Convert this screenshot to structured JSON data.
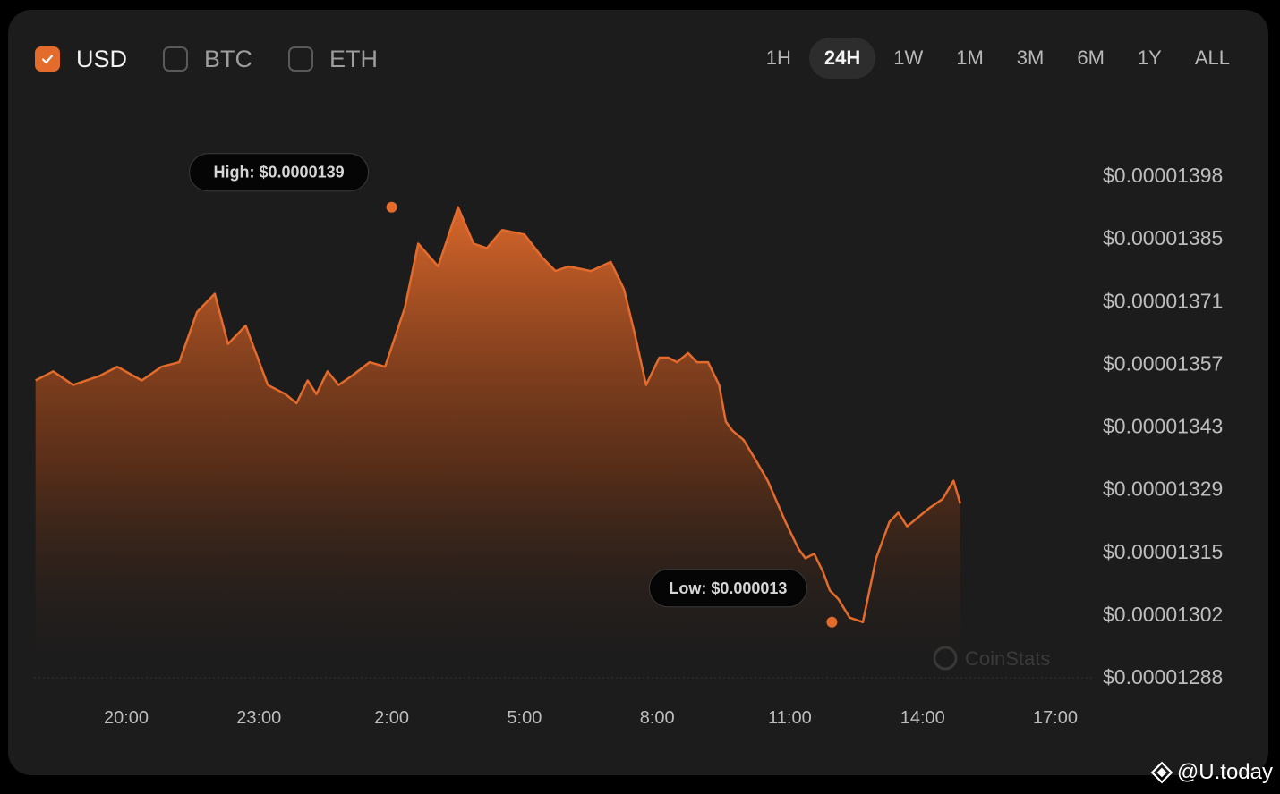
{
  "currencies": [
    {
      "label": "USD",
      "checked": true
    },
    {
      "label": "BTC",
      "checked": false
    },
    {
      "label": "ETH",
      "checked": false
    }
  ],
  "ranges": [
    {
      "label": "1H",
      "active": false
    },
    {
      "label": "24H",
      "active": true
    },
    {
      "label": "1W",
      "active": false
    },
    {
      "label": "1M",
      "active": false
    },
    {
      "label": "3M",
      "active": false
    },
    {
      "label": "6M",
      "active": false
    },
    {
      "label": "1Y",
      "active": false
    },
    {
      "label": "ALL",
      "active": false
    }
  ],
  "watermark": "CoinStats",
  "brand": "@U.today",
  "colors": {
    "accent": "#e36b2c",
    "card": "#1c1c1c"
  },
  "chart_data": {
    "type": "area",
    "title": "",
    "xlabel": "",
    "ylabel": "",
    "x_tick_labels": [
      "20:00",
      "23:00",
      "2:00",
      "5:00",
      "8:00",
      "11:00",
      "14:00",
      "17:00"
    ],
    "y_tick_labels": [
      "$0.00001398",
      "$0.00001385",
      "$0.00001371",
      "$0.00001357",
      "$0.00001343",
      "$0.00001329",
      "$0.00001315",
      "$0.00001302",
      "$0.00001288"
    ],
    "ylim": [
      1.288e-05,
      1.398e-05
    ],
    "grid": false,
    "series": [
      {
        "x_hours_from_20": [
          -2.05,
          -1.65,
          -1.2,
          -0.6,
          -0.2,
          0.35,
          0.8,
          1.2,
          1.6,
          2.0,
          2.3,
          2.7,
          3.2,
          3.6,
          3.85,
          4.1,
          4.3,
          4.55,
          4.8,
          5.1,
          5.5,
          5.85,
          6.3,
          6.6,
          7.05,
          7.5,
          7.85,
          8.15,
          8.5,
          9.0,
          9.4,
          9.7,
          10.0,
          10.5,
          10.95,
          11.25,
          11.5,
          11.75,
          12.05,
          12.25,
          12.45,
          12.7,
          12.9,
          13.15,
          13.4,
          13.55,
          13.7,
          13.95,
          14.2,
          14.5,
          14.9,
          15.2,
          15.35,
          15.55,
          15.75,
          15.9,
          16.1,
          16.35,
          16.65,
          16.95,
          17.25,
          17.45,
          17.65,
          17.9,
          18.15,
          18.45,
          18.7,
          18.85
        ],
        "values": [
          1.353e-05,
          1.355e-05,
          1.352e-05,
          1.354e-05,
          1.356e-05,
          1.353e-05,
          1.356e-05,
          1.357e-05,
          1.368e-05,
          1.372e-05,
          1.361e-05,
          1.365e-05,
          1.352e-05,
          1.35e-05,
          1.348e-05,
          1.353e-05,
          1.35e-05,
          1.355e-05,
          1.352e-05,
          1.354e-05,
          1.357e-05,
          1.356e-05,
          1.369e-05,
          1.383e-05,
          1.378e-05,
          1.391e-05,
          1.383e-05,
          1.382e-05,
          1.386e-05,
          1.385e-05,
          1.38e-05,
          1.377e-05,
          1.378e-05,
          1.377e-05,
          1.379e-05,
          1.373e-05,
          1.363e-05,
          1.352e-05,
          1.358e-05,
          1.358e-05,
          1.357e-05,
          1.359e-05,
          1.357e-05,
          1.357e-05,
          1.352e-05,
          1.344e-05,
          1.342e-05,
          1.34e-05,
          1.336e-05,
          1.331e-05,
          1.322e-05,
          1.316e-05,
          1.314e-05,
          1.315e-05,
          1.311e-05,
          1.307e-05,
          1.305e-05,
          1.301e-05,
          1.3e-05,
          1.314e-05,
          1.322e-05,
          1.324e-05,
          1.321e-05,
          1.323e-05,
          1.325e-05,
          1.327e-05,
          1.331e-05,
          1.326e-05
        ]
      }
    ],
    "annotations": {
      "high": {
        "label": "High: $0.0000139",
        "x_hours_from_20": 6.0,
        "value": 1.391e-05
      },
      "low": {
        "label": "Low: $0.000013",
        "x_hours_from_20": 15.95,
        "value": 1.3e-05
      }
    }
  }
}
